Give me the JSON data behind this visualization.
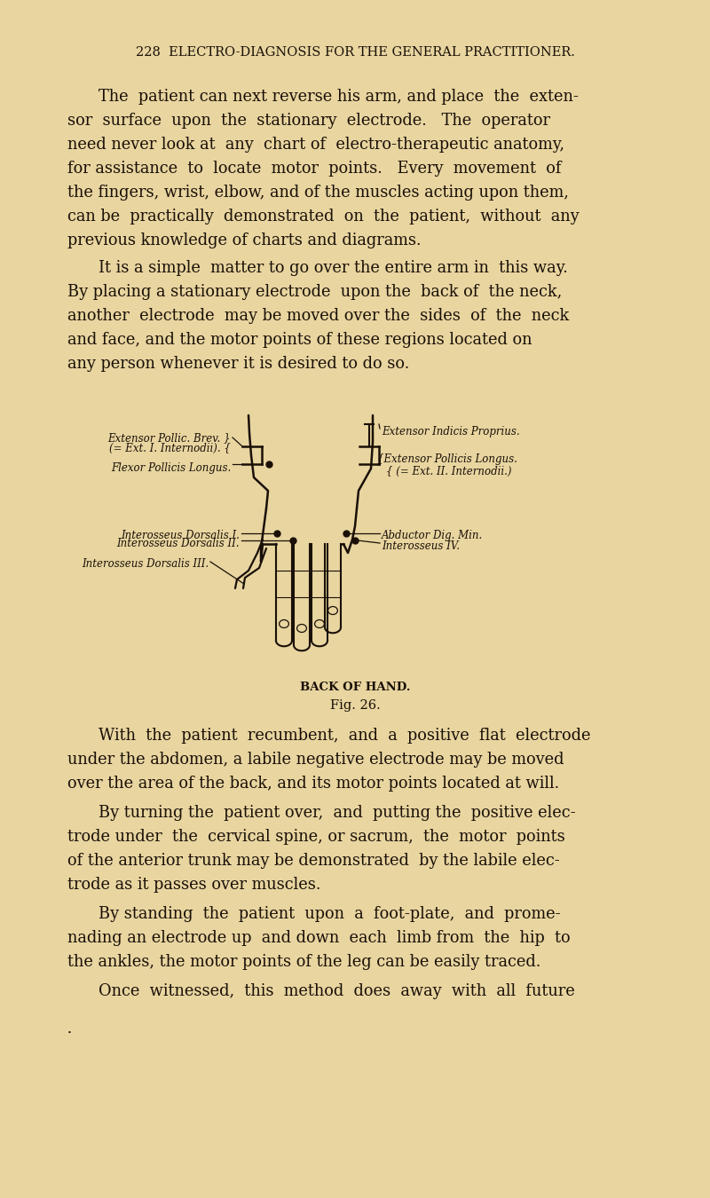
{
  "bg": "#e8d5a0",
  "tc": "#1a1008",
  "header": "228  ELECTRO-DIAGNOSIS FOR THE GENERAL PRACTITIONER.",
  "p1": [
    "The  patient can next reverse his arm, and place  the  exten-",
    "sor  surface  upon  the  stationary  electrode.   The  operator",
    "need never look at  any  chart of  electro-therapeutic anatomy,",
    "for assistance  to  locate  motor  points.   Every  movement  of",
    "the fingers, wrist, elbow, and of the muscles acting upon them,",
    "can be  practically  demonstrated  on  the  patient,  without  any",
    "previous knowledge of charts and diagrams."
  ],
  "p2": [
    "It is a simple  matter to go over the entire arm in  this way.",
    "By placing a stationary electrode  upon the  back of  the neck,",
    "another  electrode  may be moved over the  sides  of  the  neck",
    "and face, and the motor points of these regions located on",
    "any person whenever it is desired to do so."
  ],
  "p3": [
    "With  the  patient  recumbent,  and  a  positive  flat  electrode",
    "under the abdomen, a labile negative electrode may be moved",
    "over the area of the back, and its motor points located at will."
  ],
  "p4": [
    "By turning the  patient over,  and  putting the  positive elec-",
    "trode under  the  cervical spine, or sacrum,  the  motor  points",
    "of the anterior trunk may be demonstrated  by the labile elec-",
    "trode as it passes over muscles."
  ],
  "p5": [
    "By standing  the  patient  upon  a  foot-plate,  and  prome-",
    "nading an electrode up  and down  each  limb from  the  hip  to",
    "the ankles, the motor points of the leg can be easily traced."
  ],
  "p6": [
    "Once  witnessed,  this  method  does  away  with  all  future"
  ],
  "cap1": "BACK OF HAND.",
  "cap2": "Fig. 26."
}
